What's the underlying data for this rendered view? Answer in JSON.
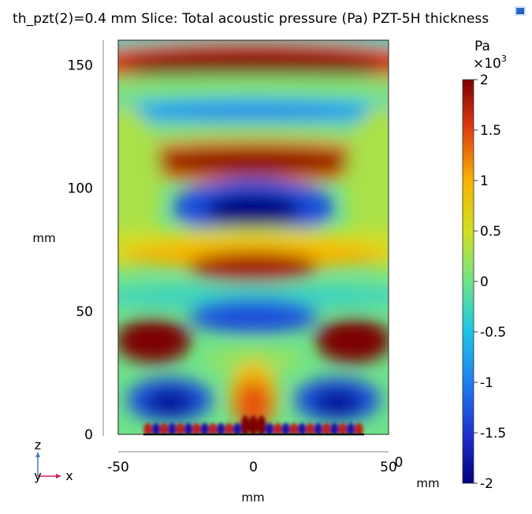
{
  "title": "th_pzt(2)=0.4 mm  Slice: Total acoustic pressure (Pa) PZT-5H thickness",
  "icons": {
    "corner": "plot-options-icon"
  },
  "chart_data": {
    "type": "heatmap",
    "title": "th_pzt(2)=0.4 mm  Slice: Total acoustic pressure (Pa) PZT-5H thickness",
    "xlabel": "mm",
    "ylabel": "mm",
    "xlim": [
      -50,
      50
    ],
    "ylim": [
      0,
      160
    ],
    "x_ticks": [
      "-50",
      "0",
      "50"
    ],
    "x_tick_values": [
      -50,
      0,
      50
    ],
    "y_ticks": [
      "0",
      "50",
      "100",
      "150"
    ],
    "y_tick_values": [
      0,
      50,
      100,
      150
    ],
    "z_axis_tick": "0",
    "z_axis_unit": "mm",
    "colorbar": {
      "unit": "Pa",
      "multiplier": "×10",
      "exponent": "3",
      "range": [
        -2,
        2
      ],
      "ticks": [
        "2",
        "1.5",
        "1",
        "0.5",
        "0",
        "-0.5",
        "-1",
        "-1.5",
        "-2"
      ],
      "tick_values": [
        2,
        1.5,
        1,
        0.5,
        0,
        -0.5,
        -1,
        -1.5,
        -2
      ],
      "colormap": "rainbow"
    },
    "field_features": [
      {
        "x": 0,
        "y": 150,
        "value": 2.0
      },
      {
        "x": 0,
        "y": 131,
        "value": -0.8
      },
      {
        "x": 0,
        "y": 111,
        "value": 1.9
      },
      {
        "x": 0,
        "y": 91,
        "value": -2.0
      },
      {
        "x": 0,
        "y": 73,
        "value": 1.0
      },
      {
        "x": 0,
        "y": 68,
        "value": 1.8
      },
      {
        "x": 0,
        "y": 56,
        "value": -0.6
      },
      {
        "x": 0,
        "y": 47,
        "value": -1.3
      },
      {
        "x": -37,
        "y": 38,
        "value": 2.0
      },
      {
        "x": 37,
        "y": 38,
        "value": 2.0
      },
      {
        "x": -31,
        "y": 14,
        "value": -1.9
      },
      {
        "x": 31,
        "y": 14,
        "value": -1.9
      },
      {
        "x": 0,
        "y": 15,
        "value": 1.4
      },
      {
        "x": 0,
        "y": 4,
        "value": 2.0
      }
    ],
    "triad": {
      "axes": [
        "z",
        "y",
        "x"
      ]
    }
  }
}
